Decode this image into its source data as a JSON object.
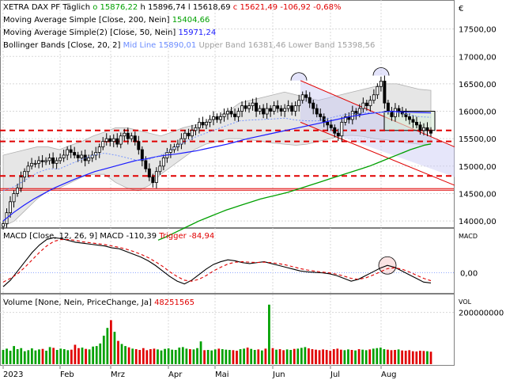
{
  "chart_data": {
    "type": "candlestick",
    "price_pane": {
      "instrument": "XETRA DAX PF",
      "interval": "Täglich",
      "ohlc_header": {
        "o_label": "o",
        "o": "15876,22",
        "h_label": "h",
        "h": "15896,74",
        "l_label": "l",
        "l": "15618,69",
        "c_label": "c",
        "c": "15621,49",
        "change": "-106,92",
        "change_pct": "-0,68%"
      },
      "indicators": [
        {
          "label": "Moving Average Simple",
          "params": "[Close, 200, Nein]",
          "value": "15404,66",
          "color": "#00a000"
        },
        {
          "label": "Moving Average Simple(2)",
          "params": "[Close, 50, Nein]",
          "value": "15971,24",
          "color": "#1a1aff"
        },
        {
          "label": "Bollinger Bands",
          "params": "[Close, 20, 2]",
          "mid_label": "Mid Line",
          "mid": "15890,01",
          "upper_label": "Upper Band",
          "upper": "16381,46",
          "lower_label": "Lower Band",
          "lower": "15398,56"
        }
      ],
      "currency_symbol": "€",
      "ylim": [
        13900,
        18000
      ],
      "y_ticks": [
        14000,
        14500,
        15000,
        15500,
        16000,
        16500,
        17000,
        17500
      ],
      "y_tick_labels": [
        "14000,00",
        "14500,00",
        "15000,00",
        "15500,00",
        "16000,00",
        "16500,00",
        "17000,00",
        "17500,00"
      ],
      "horizontal_lines_dashed": [
        15650,
        15450,
        14820
      ],
      "horizontal_lines_solid": [
        14560,
        14590
      ],
      "close": [
        13950,
        14150,
        14350,
        14500,
        14600,
        14800,
        14900,
        15000,
        15050,
        15050,
        15100,
        15080,
        15100,
        15150,
        15050,
        15100,
        15150,
        15200,
        15300,
        15250,
        15200,
        15150,
        15200,
        15100,
        15150,
        15200,
        15250,
        15350,
        15450,
        15500,
        15450,
        15500,
        15400,
        15550,
        15600,
        15500,
        15550,
        15450,
        15300,
        15100,
        14950,
        14800,
        14700,
        14900,
        15000,
        15150,
        15250,
        15300,
        15350,
        15400,
        15500,
        15600,
        15550,
        15650,
        15700,
        15800,
        15750,
        15800,
        15850,
        15900,
        15850,
        15900,
        15950,
        16000,
        15950,
        15900,
        16000,
        16100,
        16050,
        16100,
        16150,
        16000,
        16050,
        15950,
        16050,
        16000,
        16100,
        16050,
        16000,
        16050,
        16100,
        16000,
        16100,
        16200,
        16300,
        16250,
        16150,
        16050,
        15950,
        15900,
        15800,
        15750,
        15700,
        15600,
        15550,
        15800,
        15900,
        15850,
        16000,
        15950,
        16050,
        16150,
        16100,
        16200,
        16300,
        16450,
        16550,
        16150,
        16000,
        15900,
        16050,
        16000,
        15950,
        15900,
        15850,
        15800,
        15750,
        15650,
        15700,
        15650,
        15600
      ],
      "sma200": [
        13650,
        13700,
        13760,
        13820,
        13880,
        13940,
        14000,
        14050,
        14100,
        14150,
        14200,
        14240,
        14280,
        14320,
        14360,
        14400,
        14430,
        14460,
        14490,
        14520,
        14560,
        14600,
        14640,
        14680,
        14720,
        14760,
        14800,
        14840,
        14880,
        14920,
        14960,
        15000,
        15050,
        15100,
        15150,
        15200,
        15250,
        15300,
        15340,
        15380,
        15404
      ],
      "sma50": [
        14000,
        14150,
        14280,
        14400,
        14500,
        14600,
        14680,
        14760,
        14830,
        14900,
        14950,
        15000,
        15050,
        15100,
        15130,
        15170,
        15200,
        15220,
        15250,
        15280,
        15320,
        15360,
        15400,
        15450,
        15500,
        15540,
        15580,
        15620,
        15660,
        15700,
        15740,
        15780,
        15820,
        15860,
        15900,
        15930,
        15960,
        15980,
        16000,
        15990,
        15980,
        15975,
        15971
      ],
      "bb_upper": [
        15200,
        15250,
        15300,
        15350,
        15350,
        15300,
        15380,
        15450,
        15550,
        15620,
        15700,
        15700,
        15650,
        15600,
        15550,
        15620,
        15700,
        15750,
        15800,
        15900,
        16000,
        16150,
        16200,
        16250,
        16300,
        16350,
        16300,
        16250,
        16200,
        16250,
        16300,
        16350,
        16400,
        16450,
        16500,
        16500,
        16450,
        16400,
        16381
      ],
      "bb_lower": [
        13900,
        14000,
        14200,
        14400,
        14550,
        14600,
        14700,
        14800,
        14850,
        14850,
        14700,
        14600,
        14550,
        14650,
        14850,
        15000,
        15150,
        15300,
        15400,
        15450,
        15500,
        15500,
        15480,
        15450,
        15420,
        15400,
        15380,
        15400,
        15450,
        15500,
        15550,
        15560,
        15540,
        15500,
        15480,
        15450,
        15420,
        15400,
        15398
      ]
    },
    "macd_pane": {
      "label": "MACD",
      "params": "[Close, 12, 26, 9]",
      "macd_label": "MACD",
      "macd": "-110,39",
      "trigger_label": "Trigger",
      "trigger": "-84,94",
      "side_label": "MACD",
      "y_ticks": [
        0
      ],
      "y_tick_labels": [
        "0,00"
      ],
      "ylim": [
        -200,
        450
      ],
      "macd_line": [
        -150,
        -80,
        20,
        120,
        220,
        300,
        360,
        380,
        370,
        350,
        330,
        320,
        310,
        300,
        290,
        270,
        260,
        230,
        200,
        170,
        130,
        80,
        20,
        -40,
        -90,
        -120,
        -80,
        -20,
        40,
        90,
        120,
        140,
        130,
        110,
        100,
        110,
        120,
        100,
        80,
        60,
        40,
        20,
        10,
        5,
        0,
        -10,
        -30,
        -60,
        -90,
        -70,
        -30,
        10,
        50,
        80,
        60,
        20,
        -20,
        -60,
        -100,
        -110
      ],
      "trigger_line": [
        -100,
        -60,
        -10,
        60,
        140,
        220,
        290,
        340,
        360,
        360,
        350,
        335,
        325,
        315,
        305,
        290,
        275,
        255,
        230,
        200,
        165,
        120,
        70,
        10,
        -40,
        -80,
        -90,
        -70,
        -30,
        20,
        60,
        95,
        115,
        120,
        115,
        112,
        115,
        110,
        100,
        85,
        65,
        45,
        30,
        18,
        8,
        0,
        -15,
        -35,
        -60,
        -70,
        -55,
        -25,
        10,
        45,
        55,
        40,
        10,
        -25,
        -60,
        -85
      ]
    },
    "volume_pane": {
      "label": "Volume",
      "params": "[None, Nein, PriceChange, Ja]",
      "value": "48251565",
      "side_label": "VOL",
      "y_ticks": [
        200000000
      ],
      "y_tick_labels": [
        "200000000"
      ],
      "ylim": [
        0,
        260000000
      ],
      "values": [
        55000000,
        60000000,
        52000000,
        70000000,
        58000000,
        62000000,
        50000000,
        54000000,
        61000000,
        53000000,
        57000000,
        59000000,
        52000000,
        66000000,
        63000000,
        55000000,
        60000000,
        58000000,
        54000000,
        56000000,
        75000000,
        62000000,
        64000000,
        59000000,
        57000000,
        68000000,
        70000000,
        80000000,
        110000000,
        140000000,
        170000000,
        125000000,
        90000000,
        78000000,
        70000000,
        65000000,
        60000000,
        58000000,
        55000000,
        62000000,
        54000000,
        58000000,
        60000000,
        57000000,
        53000000,
        59000000,
        61000000,
        56000000,
        55000000,
        64000000,
        66000000,
        60000000,
        58000000,
        57000000,
        62000000,
        88000000,
        54000000,
        55000000,
        53000000,
        57000000,
        60000000,
        58000000,
        56000000,
        55000000,
        54000000,
        52000000,
        58000000,
        60000000,
        64000000,
        59000000,
        55000000,
        57000000,
        53000000,
        60000000,
        230000000,
        62000000,
        56000000,
        58000000,
        54000000,
        57000000,
        55000000,
        59000000,
        60000000,
        63000000,
        66000000,
        61000000,
        58000000,
        56000000,
        54000000,
        57000000,
        55000000,
        52000000,
        58000000,
        60000000,
        56000000,
        54000000,
        57000000,
        55000000,
        53000000,
        58000000,
        56000000,
        54000000,
        57000000,
        60000000,
        62000000,
        64000000,
        58000000,
        56000000,
        54000000,
        55000000,
        57000000,
        53000000,
        52000000,
        54000000,
        50000000,
        49000000,
        52000000,
        51000000,
        50000000,
        48251565
      ]
    },
    "x_axis": {
      "labels": [
        "2023",
        "Feb",
        "Mrz",
        "Apr",
        "Mai",
        "Jun",
        "Jul",
        "Aug"
      ]
    }
  }
}
